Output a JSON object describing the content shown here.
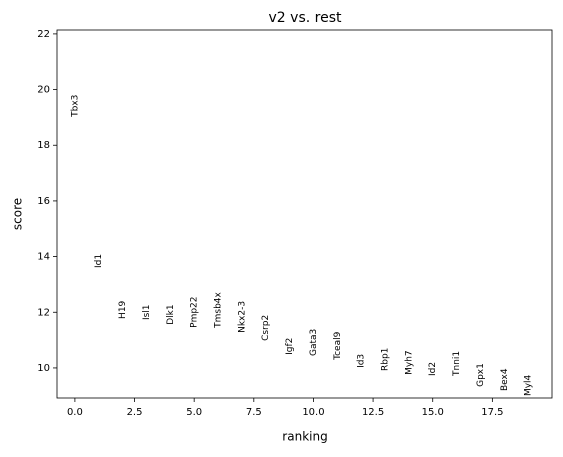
{
  "chart_data": {
    "type": "text-scatter",
    "title": "v2 vs. rest",
    "x_label": "ranking",
    "y_label": "score",
    "x": [
      0,
      1,
      2,
      3,
      4,
      5,
      6,
      7,
      8,
      9,
      10,
      11,
      12,
      13,
      14,
      15,
      16,
      17,
      18,
      19
    ],
    "labels": [
      "Tbx3",
      "Id1",
      "H19",
      "Isl1",
      "Dlk1",
      "Pmp22",
      "Tmsb4x",
      "Nkx2-3",
      "Csrp2",
      "Igf2",
      "Gata3",
      "Tceal9",
      "Id3",
      "Rbp1",
      "Myh7",
      "Id2",
      "Tnni1",
      "Gpx1",
      "Bex4",
      "Myl4"
    ],
    "values": [
      19.02,
      13.59,
      11.76,
      11.72,
      11.55,
      11.44,
      11.44,
      11.26,
      10.97,
      10.47,
      10.43,
      10.29,
      10.0,
      9.89,
      9.75,
      9.71,
      9.71,
      9.32,
      9.17,
      8.99
    ],
    "xlim": [
      -0.75,
      20.0
    ],
    "ylim": [
      8.92,
      22.14
    ],
    "xticks": [
      {
        "value": 0,
        "label": "0.0"
      },
      {
        "value": 2.5,
        "label": "2.5"
      },
      {
        "value": 5,
        "label": "5.0"
      },
      {
        "value": 7.5,
        "label": "7.5"
      },
      {
        "value": 10,
        "label": "10.0"
      },
      {
        "value": 12.5,
        "label": "12.5"
      },
      {
        "value": 15,
        "label": "15.0"
      },
      {
        "value": 17.5,
        "label": "17.5"
      }
    ],
    "yticks": [
      10,
      12,
      14,
      16,
      18,
      20,
      22
    ]
  }
}
